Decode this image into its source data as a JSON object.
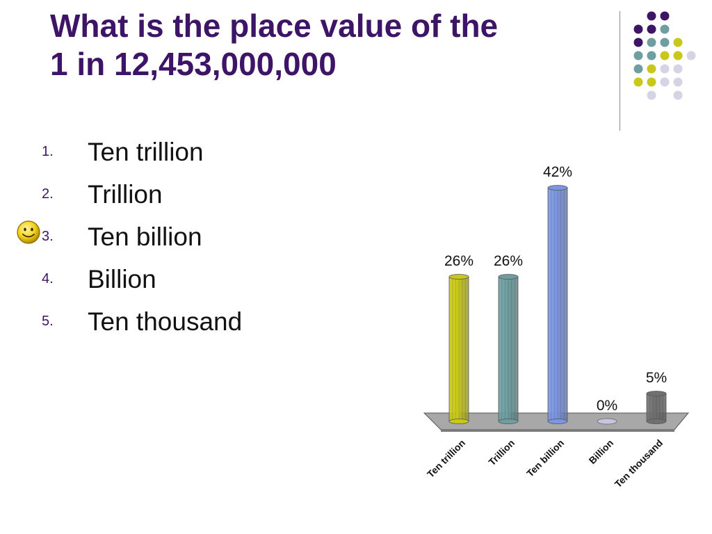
{
  "question": {
    "line1": "What is the place value of the",
    "line2": "1 in 12,453,000,000"
  },
  "answers": [
    {
      "number": "1.",
      "label": "Ten trillion"
    },
    {
      "number": "2.",
      "label": "Trillion"
    },
    {
      "number": "3.",
      "label": "Ten billion"
    },
    {
      "number": "4.",
      "label": "Billion"
    },
    {
      "number": "5.",
      "label": "Ten thousand"
    }
  ],
  "marked_answer_icon": "smiley-face-icon",
  "colors": {
    "title": "#3d1466",
    "dot_purple": "#3d1466",
    "dot_teal": "#6e9ea0",
    "dot_yellow": "#c8c81a",
    "dot_lavender": "#d4d4e4"
  },
  "chart_data": {
    "type": "bar",
    "style": "3d-cylinder",
    "categories": [
      "Ten trillion",
      "Trillion",
      "Ten billion",
      "Billion",
      "Ten thousand"
    ],
    "values": [
      26,
      26,
      42,
      0,
      5
    ],
    "data_labels": [
      "26%",
      "26%",
      "42%",
      "0%",
      "5%"
    ],
    "unit": "%",
    "colors": [
      "#c8c81a",
      "#6e9ea0",
      "#7b95e0",
      "#c8c4e0",
      "#707070"
    ],
    "xlabel": "",
    "ylabel": "",
    "ylim": [
      0,
      42
    ],
    "grid": false,
    "legend": "none"
  }
}
